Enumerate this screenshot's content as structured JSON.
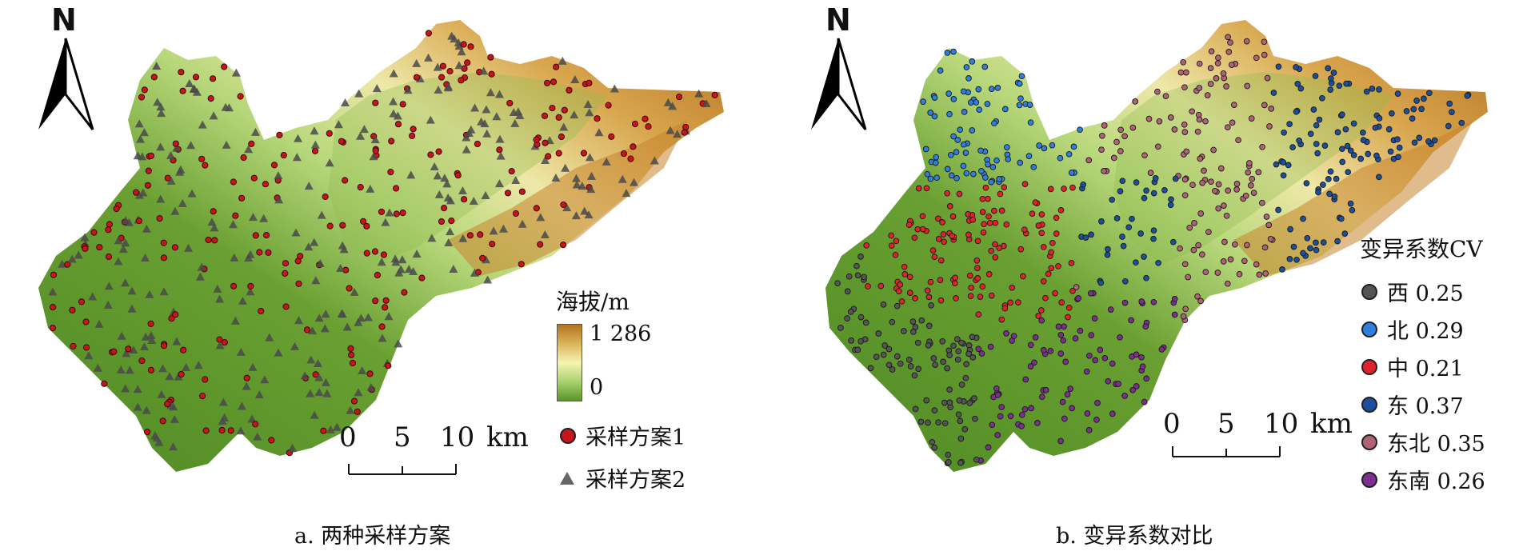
{
  "panel_a": {
    "north": "N",
    "scale": {
      "ticks": [
        "0",
        "5",
        "10"
      ],
      "unit": "km"
    },
    "elevation_legend": {
      "title": "海拔/m",
      "max": "1 286",
      "min": "0"
    },
    "sample_legend": [
      "采样方案1",
      "采样方案2"
    ],
    "caption": "a. 两种采样方案"
  },
  "panel_b": {
    "north": "N",
    "scale": {
      "ticks": [
        "0",
        "5",
        "10"
      ],
      "unit": "km"
    },
    "cv_legend": {
      "title": "变异系数CV",
      "items": [
        {
          "label": "西 0.25",
          "color": "#555555"
        },
        {
          "label": "北 0.29",
          "color": "#2f7fe0"
        },
        {
          "label": "中 0.21",
          "color": "#e0222b"
        },
        {
          "label": "东 0.37",
          "color": "#1d4f9c"
        },
        {
          "label": "东北 0.35",
          "color": "#b06377"
        },
        {
          "label": "东南 0.26",
          "color": "#7b2f8f"
        }
      ]
    },
    "caption": "b. 变异系数对比"
  },
  "colors": {
    "lowland": "#5a9527",
    "highland": "#b5731f",
    "sample1": "#c8141c",
    "sample2": "#555555"
  }
}
